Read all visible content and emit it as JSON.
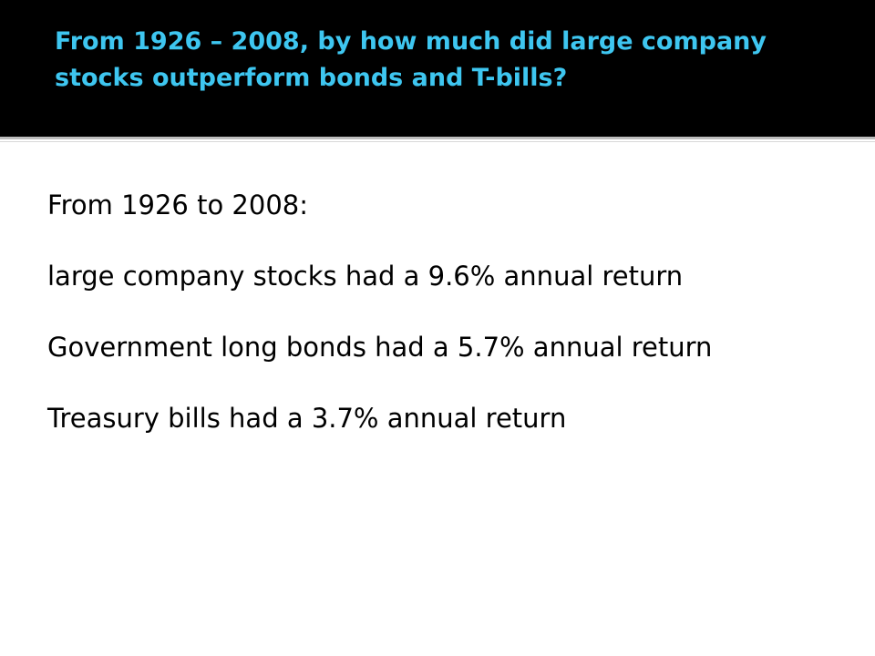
{
  "header": {
    "title": "From 1926 – 2008, by how much did large company stocks outperform bonds and T-bills?"
  },
  "body": {
    "paragraphs": [
      "From 1926 to 2008:",
      "large company stocks had a 9.6% annual return",
      "Government long bonds had a 5.7% annual return",
      "Treasury bills had a 3.7% annual return"
    ]
  }
}
